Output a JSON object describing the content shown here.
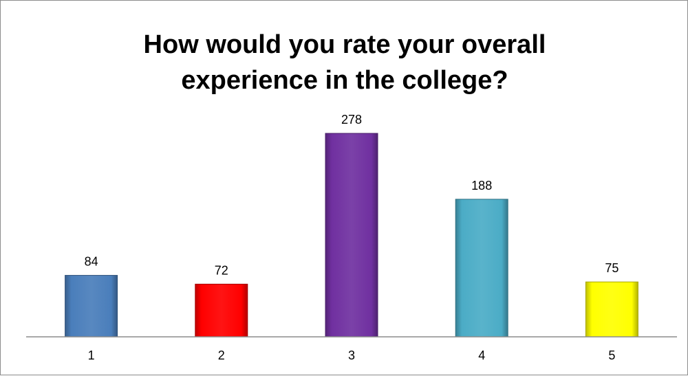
{
  "chart_data": {
    "type": "bar",
    "title_lines": [
      "How would you rate your overall",
      "experience in the college?"
    ],
    "categories": [
      "1",
      "2",
      "3",
      "4",
      "5"
    ],
    "values": [
      84,
      72,
      278,
      188,
      75
    ],
    "data_labels": [
      "84",
      "72",
      "278",
      "188",
      "75"
    ],
    "colors": [
      "#4a7ebb",
      "#ff0000",
      "#7030a0",
      "#4bacc6",
      "#ffff00"
    ],
    "ylim": [
      0,
      300
    ],
    "grid": false,
    "legend": "none",
    "xlabel": "",
    "ylabel": ""
  }
}
